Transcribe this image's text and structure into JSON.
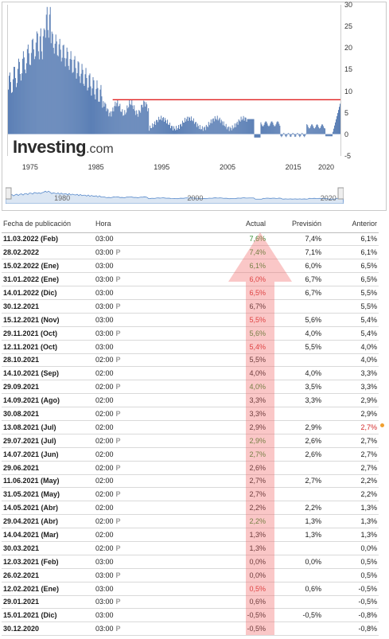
{
  "chart": {
    "logo_main": "Investing",
    "logo_suffix": ".com",
    "y_ticks": [
      "30",
      "25",
      "20",
      "15",
      "10",
      "5",
      "0",
      "-5"
    ],
    "x_ticks": [
      "1975",
      "1985",
      "1995",
      "2005",
      "2015",
      "2020"
    ],
    "nav_ticks": [
      "1980",
      "2000",
      "2020"
    ],
    "reference_value": 8,
    "line_color": "#e02020",
    "bar_color": "#5b7fb5"
  },
  "table": {
    "headers": {
      "date": "Fecha de publicación",
      "time": "Hora",
      "actual": "Actual",
      "forecast": "Previsión",
      "previous": "Anterior"
    },
    "p_mark": "P",
    "rows": [
      {
        "date": "11.03.2022 (Feb)",
        "time": "03:00",
        "p": false,
        "actual": "7,6%",
        "ac": "g",
        "forecast": "7,4%",
        "previous": "6,1%"
      },
      {
        "date": "28.02.2022",
        "time": "03:00",
        "p": true,
        "actual": "7,4%",
        "ac": "g",
        "forecast": "7,1%",
        "previous": "6,1%"
      },
      {
        "date": "15.02.2022 (Ene)",
        "time": "03:00",
        "p": false,
        "actual": "6,1%",
        "ac": "g",
        "forecast": "6,0%",
        "previous": "6,5%"
      },
      {
        "date": "31.01.2022 (Ene)",
        "time": "03:00",
        "p": true,
        "actual": "6,0%",
        "ac": "r",
        "forecast": "6,7%",
        "previous": "6,5%"
      },
      {
        "date": "14.01.2022 (Dic)",
        "time": "03:00",
        "p": false,
        "actual": "6,5%",
        "ac": "r",
        "forecast": "6,7%",
        "previous": "5,5%"
      },
      {
        "date": "30.12.2021",
        "time": "03:00",
        "p": true,
        "actual": "6,7%",
        "ac": "",
        "forecast": "",
        "previous": "5,5%"
      },
      {
        "date": "15.12.2021 (Nov)",
        "time": "03:00",
        "p": false,
        "actual": "5,5%",
        "ac": "r",
        "forecast": "5,6%",
        "previous": "5,4%"
      },
      {
        "date": "29.11.2021 (Oct)",
        "time": "03:00",
        "p": true,
        "actual": "5,6%",
        "ac": "g",
        "forecast": "4,0%",
        "previous": "5,4%"
      },
      {
        "date": "12.11.2021 (Oct)",
        "time": "03:00",
        "p": false,
        "actual": "5,4%",
        "ac": "r",
        "forecast": "5,5%",
        "previous": "4,0%"
      },
      {
        "date": "28.10.2021",
        "time": "02:00",
        "p": true,
        "actual": "5,5%",
        "ac": "",
        "forecast": "",
        "previous": "4,0%"
      },
      {
        "date": "14.10.2021 (Sep)",
        "time": "02:00",
        "p": false,
        "actual": "4,0%",
        "ac": "",
        "forecast": "4,0%",
        "previous": "3,3%"
      },
      {
        "date": "29.09.2021",
        "time": "02:00",
        "p": true,
        "actual": "4,0%",
        "ac": "g",
        "forecast": "3,5%",
        "previous": "3,3%"
      },
      {
        "date": "14.09.2021 (Ago)",
        "time": "02:00",
        "p": false,
        "actual": "3,3%",
        "ac": "",
        "forecast": "3,3%",
        "previous": "2,9%"
      },
      {
        "date": "30.08.2021",
        "time": "02:00",
        "p": true,
        "actual": "3,3%",
        "ac": "",
        "forecast": "",
        "previous": "2,9%"
      },
      {
        "date": "13.08.2021 (Jul)",
        "time": "02:00",
        "p": false,
        "actual": "2,9%",
        "ac": "",
        "forecast": "2,9%",
        "previous": "2,7%",
        "prev_red": true
      },
      {
        "date": "29.07.2021 (Jul)",
        "time": "02:00",
        "p": true,
        "actual": "2,9%",
        "ac": "g",
        "forecast": "2,6%",
        "previous": "2,7%"
      },
      {
        "date": "14.07.2021 (Jun)",
        "time": "02:00",
        "p": false,
        "actual": "2,7%",
        "ac": "g",
        "forecast": "2,6%",
        "previous": "2,7%"
      },
      {
        "date": "29.06.2021",
        "time": "02:00",
        "p": true,
        "actual": "2,6%",
        "ac": "",
        "forecast": "",
        "previous": "2,7%"
      },
      {
        "date": "11.06.2021 (May)",
        "time": "02:00",
        "p": false,
        "actual": "2,7%",
        "ac": "",
        "forecast": "2,7%",
        "previous": "2,2%"
      },
      {
        "date": "31.05.2021 (May)",
        "time": "02:00",
        "p": true,
        "actual": "2,7%",
        "ac": "",
        "forecast": "",
        "previous": "2,2%"
      },
      {
        "date": "14.05.2021 (Abr)",
        "time": "02:00",
        "p": false,
        "actual": "2,2%",
        "ac": "",
        "forecast": "2,2%",
        "previous": "1,3%"
      },
      {
        "date": "29.04.2021 (Abr)",
        "time": "02:00",
        "p": true,
        "actual": "2,2%",
        "ac": "g",
        "forecast": "1,3%",
        "previous": "1,3%"
      },
      {
        "date": "14.04.2021 (Mar)",
        "time": "02:00",
        "p": false,
        "actual": "1,3%",
        "ac": "",
        "forecast": "1,3%",
        "previous": "1,3%"
      },
      {
        "date": "30.03.2021",
        "time": "02:00",
        "p": true,
        "actual": "1,3%",
        "ac": "",
        "forecast": "",
        "previous": "0,0%"
      },
      {
        "date": "12.03.2021 (Feb)",
        "time": "03:00",
        "p": false,
        "actual": "0,0%",
        "ac": "",
        "forecast": "0,0%",
        "previous": "0,5%"
      },
      {
        "date": "26.02.2021",
        "time": "03:00",
        "p": true,
        "actual": "0,0%",
        "ac": "",
        "forecast": "",
        "previous": "0,5%"
      },
      {
        "date": "12.02.2021 (Ene)",
        "time": "03:00",
        "p": false,
        "actual": "0,5%",
        "ac": "r",
        "forecast": "0,6%",
        "previous": "-0,5%"
      },
      {
        "date": "29.01.2021",
        "time": "03:00",
        "p": true,
        "actual": "0,6%",
        "ac": "",
        "forecast": "",
        "previous": "-0,5%"
      },
      {
        "date": "15.01.2021 (Dic)",
        "time": "03:00",
        "p": false,
        "actual": "-0,5%",
        "ac": "",
        "forecast": "-0,5%",
        "previous": "-0,8%"
      },
      {
        "date": "30.12.2020",
        "time": "03:00",
        "p": true,
        "actual": "-0,5%",
        "ac": "",
        "forecast": "",
        "previous": "-0,8%"
      }
    ]
  }
}
